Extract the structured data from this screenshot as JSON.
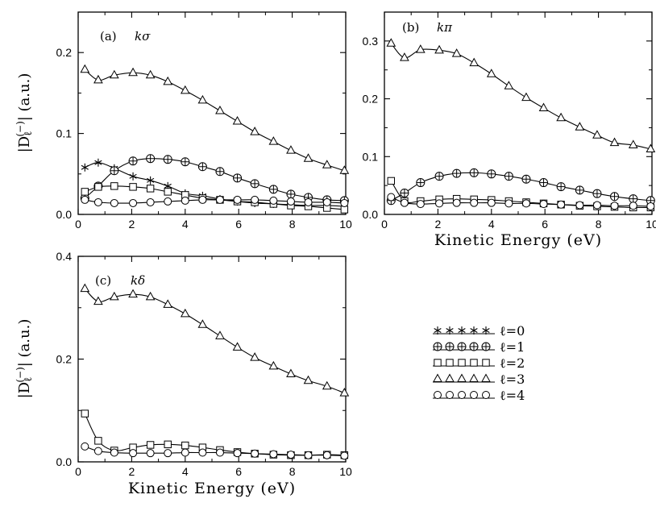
{
  "figure": {
    "shared_ylabel": "|D_l^(-)| (a.u.)"
  },
  "legend": {
    "entries": [
      {
        "series": "l0",
        "label": "ℓ=0",
        "marker": "star"
      },
      {
        "series": "l1",
        "label": "ℓ=1",
        "marker": "circle-plus"
      },
      {
        "series": "l2",
        "label": "ℓ=2",
        "marker": "square"
      },
      {
        "series": "l3",
        "label": "ℓ=3",
        "marker": "triangle"
      },
      {
        "series": "l4",
        "label": "ℓ=4",
        "marker": "circle"
      }
    ]
  },
  "chart_data": [
    {
      "type": "line",
      "panel_label": "(a)",
      "title": "kσ",
      "xlabel": "",
      "ylabel": "|D_l^(-)| (a.u.)",
      "xlim": [
        0,
        10
      ],
      "ylim": [
        0,
        0.25
      ],
      "xticks": [
        "0",
        "2",
        "4",
        "6",
        "8",
        "10"
      ],
      "yticks": [
        "0.0",
        "0.1",
        "0.2"
      ],
      "series": [
        {
          "name": "ℓ=0",
          "key": "l0",
          "marker": "star",
          "x": [
            0.25,
            0.75,
            1.35,
            2.05,
            2.7,
            3.35,
            4.0,
            4.65,
            5.3,
            5.95,
            6.6,
            7.3,
            7.95,
            8.6,
            9.3,
            9.95
          ],
          "y": [
            0.058,
            0.064,
            0.057,
            0.047,
            0.042,
            0.035,
            0.026,
            0.023,
            0.019,
            0.016,
            0.014,
            0.013,
            0.012,
            0.011,
            0.011,
            0.01
          ]
        },
        {
          "name": "ℓ=1",
          "key": "l1",
          "marker": "circle-plus",
          "x": [
            0.25,
            0.75,
            1.35,
            2.05,
            2.7,
            3.35,
            4.0,
            4.65,
            5.3,
            5.95,
            6.6,
            7.3,
            7.95,
            8.6,
            9.3,
            9.95
          ],
          "y": [
            0.02,
            0.035,
            0.054,
            0.066,
            0.069,
            0.068,
            0.065,
            0.059,
            0.053,
            0.045,
            0.038,
            0.031,
            0.025,
            0.021,
            0.018,
            0.017
          ]
        },
        {
          "name": "ℓ=2",
          "key": "l2",
          "marker": "square",
          "x": [
            0.25,
            0.75,
            1.35,
            2.05,
            2.7,
            3.35,
            4.0,
            4.65,
            5.3,
            5.95,
            6.6,
            7.3,
            7.95,
            8.6,
            9.3,
            9.95
          ],
          "y": [
            0.028,
            0.034,
            0.035,
            0.034,
            0.032,
            0.028,
            0.024,
            0.02,
            0.018,
            0.016,
            0.015,
            0.013,
            0.011,
            0.01,
            0.008,
            0.006
          ]
        },
        {
          "name": "ℓ=3",
          "key": "l3",
          "marker": "triangle",
          "x": [
            0.25,
            0.75,
            1.35,
            2.05,
            2.7,
            3.35,
            4.0,
            4.65,
            5.3,
            5.95,
            6.6,
            7.3,
            7.95,
            8.6,
            9.3,
            9.95
          ],
          "y": [
            0.179,
            0.166,
            0.172,
            0.175,
            0.172,
            0.164,
            0.153,
            0.141,
            0.128,
            0.115,
            0.102,
            0.09,
            0.079,
            0.069,
            0.061,
            0.054
          ]
        },
        {
          "name": "ℓ=4",
          "key": "l4",
          "marker": "circle",
          "x": [
            0.25,
            0.75,
            1.35,
            2.05,
            2.7,
            3.35,
            4.0,
            4.65,
            5.3,
            5.95,
            6.6,
            7.3,
            7.95,
            8.6,
            9.3,
            9.95
          ],
          "y": [
            0.018,
            0.015,
            0.014,
            0.014,
            0.015,
            0.016,
            0.017,
            0.018,
            0.018,
            0.018,
            0.018,
            0.017,
            0.016,
            0.015,
            0.015,
            0.014
          ]
        }
      ]
    },
    {
      "type": "line",
      "panel_label": "(b)",
      "title": "kπ",
      "xlabel": "Kinetic Energy (eV)",
      "ylabel": "",
      "xlim": [
        0,
        10
      ],
      "ylim": [
        0,
        0.35
      ],
      "xticks": [
        "0",
        "2",
        "4",
        "6",
        "8",
        "10"
      ],
      "yticks": [
        "0.0",
        "0.1",
        "0.2",
        "0.3"
      ],
      "series": [
        {
          "name": "ℓ=1",
          "key": "l1",
          "marker": "circle-plus",
          "x": [
            0.25,
            0.75,
            1.35,
            2.05,
            2.7,
            3.35,
            4.0,
            4.65,
            5.3,
            5.95,
            6.6,
            7.3,
            7.95,
            8.6,
            9.3,
            9.95
          ],
          "y": [
            0.024,
            0.037,
            0.055,
            0.066,
            0.071,
            0.072,
            0.07,
            0.066,
            0.061,
            0.055,
            0.048,
            0.042,
            0.036,
            0.031,
            0.027,
            0.024
          ]
        },
        {
          "name": "ℓ=2",
          "key": "l2",
          "marker": "square",
          "x": [
            0.25,
            0.75,
            1.35,
            2.05,
            2.7,
            3.35,
            4.0,
            4.65,
            5.3,
            5.95,
            6.6,
            7.3,
            7.95,
            8.6,
            9.3,
            9.95
          ],
          "y": [
            0.058,
            0.023,
            0.023,
            0.026,
            0.027,
            0.026,
            0.025,
            0.023,
            0.021,
            0.019,
            0.017,
            0.015,
            0.014,
            0.013,
            0.012,
            0.012
          ]
        },
        {
          "name": "ℓ=3",
          "key": "l3",
          "marker": "triangle",
          "x": [
            0.25,
            0.75,
            1.35,
            2.05,
            2.7,
            3.35,
            4.0,
            4.65,
            5.3,
            5.95,
            6.6,
            7.3,
            7.95,
            8.6,
            9.3,
            9.95
          ],
          "y": [
            0.296,
            0.271,
            0.285,
            0.284,
            0.278,
            0.262,
            0.243,
            0.222,
            0.202,
            0.184,
            0.167,
            0.151,
            0.137,
            0.124,
            0.12,
            0.113
          ]
        },
        {
          "name": "ℓ=4",
          "key": "l4",
          "marker": "circle",
          "x": [
            0.25,
            0.75,
            1.35,
            2.05,
            2.7,
            3.35,
            4.0,
            4.65,
            5.3,
            5.95,
            6.6,
            7.3,
            7.95,
            8.6,
            9.3,
            9.95
          ],
          "y": [
            0.03,
            0.02,
            0.018,
            0.019,
            0.02,
            0.02,
            0.02,
            0.019,
            0.019,
            0.018,
            0.017,
            0.016,
            0.016,
            0.015,
            0.015,
            0.014
          ]
        }
      ]
    },
    {
      "type": "line",
      "panel_label": "(c)",
      "title": "kδ",
      "xlabel": "Kinetic Energy (eV)",
      "ylabel": "|D_l^(-)| (a.u.)",
      "xlim": [
        0,
        10
      ],
      "ylim": [
        0,
        0.4
      ],
      "xticks": [
        "0",
        "2",
        "4",
        "6",
        "8",
        "10"
      ],
      "yticks": [
        "0.0",
        "0.2",
        "0.4"
      ],
      "series": [
        {
          "name": "ℓ=2",
          "key": "l2",
          "marker": "square",
          "x": [
            0.25,
            0.75,
            1.35,
            2.05,
            2.7,
            3.35,
            4.0,
            4.65,
            5.3,
            5.95,
            6.6,
            7.3,
            7.95,
            8.6,
            9.3,
            9.95
          ],
          "y": [
            0.094,
            0.041,
            0.022,
            0.028,
            0.033,
            0.034,
            0.032,
            0.028,
            0.023,
            0.019,
            0.016,
            0.014,
            0.013,
            0.013,
            0.014,
            0.013
          ]
        },
        {
          "name": "ℓ=3",
          "key": "l3",
          "marker": "triangle",
          "x": [
            0.25,
            0.75,
            1.35,
            2.05,
            2.7,
            3.35,
            4.0,
            4.65,
            5.3,
            5.95,
            6.6,
            7.3,
            7.95,
            8.6,
            9.3,
            9.95
          ],
          "y": [
            0.337,
            0.312,
            0.321,
            0.326,
            0.321,
            0.306,
            0.288,
            0.267,
            0.245,
            0.223,
            0.203,
            0.186,
            0.171,
            0.158,
            0.147,
            0.134
          ]
        },
        {
          "name": "ℓ=4",
          "key": "l4",
          "marker": "circle",
          "x": [
            0.25,
            0.75,
            1.35,
            2.05,
            2.7,
            3.35,
            4.0,
            4.65,
            5.3,
            5.95,
            6.6,
            7.3,
            7.95,
            8.6,
            9.3,
            9.95
          ],
          "y": [
            0.03,
            0.021,
            0.018,
            0.017,
            0.017,
            0.017,
            0.018,
            0.018,
            0.018,
            0.017,
            0.016,
            0.015,
            0.014,
            0.013,
            0.013,
            0.012
          ]
        }
      ]
    }
  ]
}
